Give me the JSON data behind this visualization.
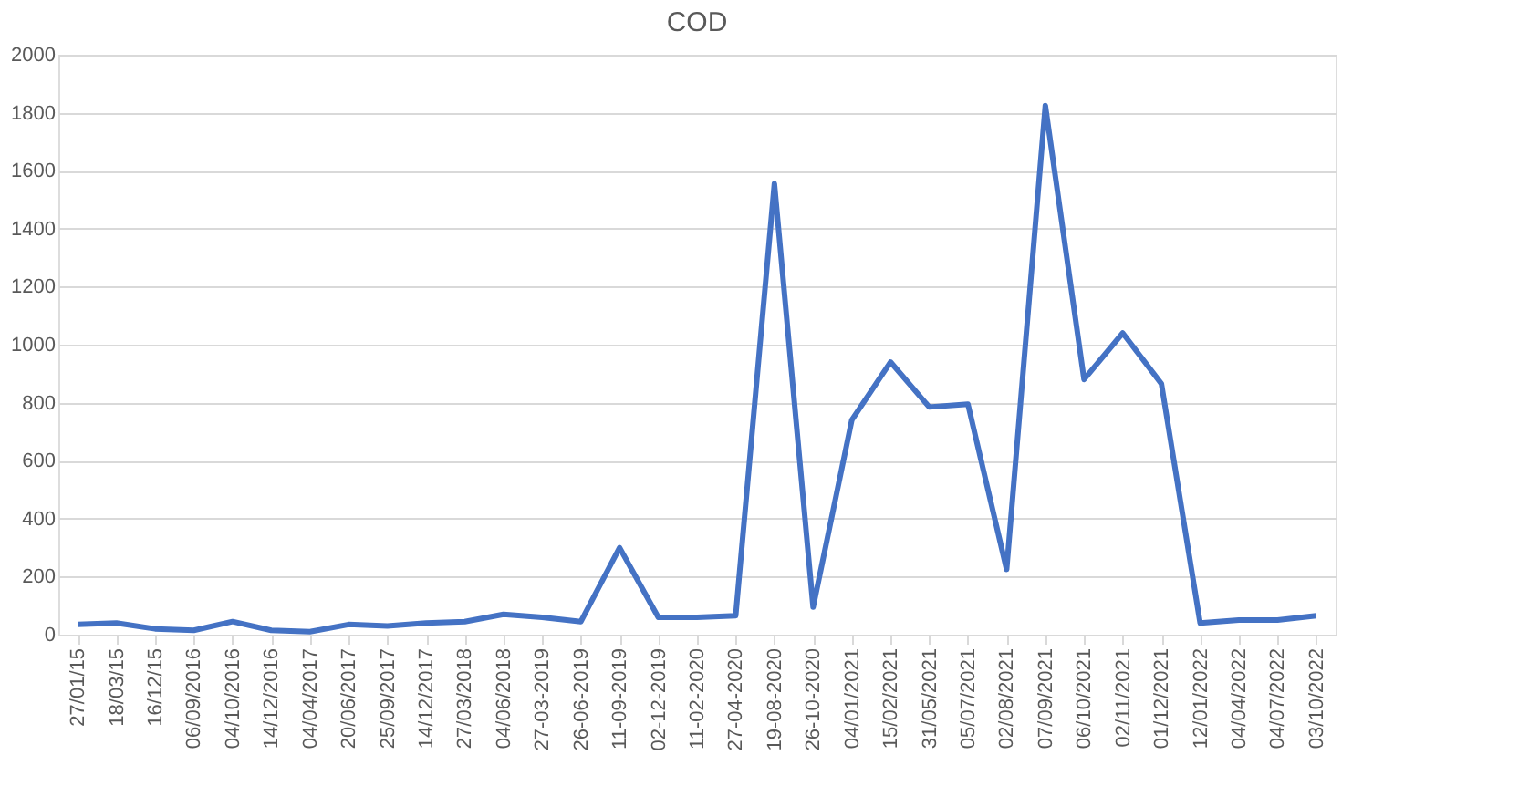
{
  "chart_data": {
    "type": "line",
    "title": "COD",
    "categories": [
      "27/01/15",
      "18/03/15",
      "16/12/15",
      "06/09/2016",
      "04/10/2016",
      "14/12/2016",
      "04/04/2017",
      "20/06/2017",
      "25/09/2017",
      "14/12/2017",
      "27/03/2018",
      "04/06/2018",
      "27-03-2019",
      "26-06-2019",
      "11-09-2019",
      "02-12-2019",
      "11-02-2020",
      "27-04-2020",
      "19-08-2020",
      "26-10-2020",
      "04/01/2021",
      "15/02/2021",
      "31/05/2021",
      "05/07/2021",
      "02/08/2021",
      "07/09/2021",
      "06/10/2021",
      "02/11/2021",
      "01/12/2021",
      "12/01/2022",
      "04/04/2022",
      "04/07/2022",
      "03/10/2022"
    ],
    "series": [
      {
        "color": "#4472c4",
        "values": [
          35,
          40,
          20,
          15,
          45,
          15,
          10,
          35,
          30,
          40,
          45,
          70,
          60,
          45,
          300,
          60,
          60,
          65,
          1555,
          95,
          740,
          940,
          785,
          795,
          225,
          1825,
          880,
          1040,
          865,
          40,
          50,
          50,
          65
        ]
      }
    ],
    "ylim": [
      0,
      2000
    ],
    "yticks": [
      0,
      200,
      400,
      600,
      800,
      1000,
      1200,
      1400,
      1600,
      1800,
      2000
    ],
    "grid": "y",
    "marker": "none",
    "line_style": "solid"
  }
}
